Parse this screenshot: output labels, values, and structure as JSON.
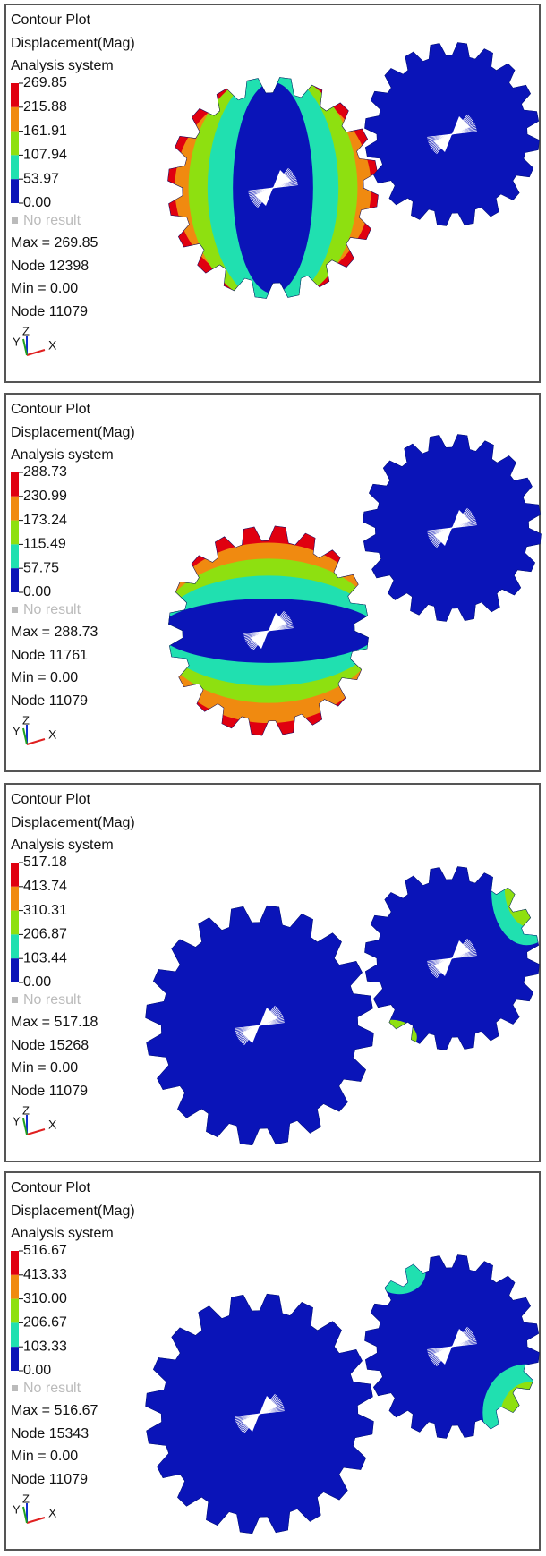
{
  "panels": [
    {
      "title": "Contour Plot",
      "result": "Displacement(Mag)",
      "system": "Analysis system",
      "legend": [
        "269.85",
        "215.88",
        "161.91",
        "107.94",
        "53.97",
        "0.00"
      ],
      "no_result": "No result",
      "max": "Max = 269.85",
      "max_node": "Node 12398",
      "min": "Min = 0.00",
      "min_node": "Node 11079",
      "axes": {
        "y": "Y",
        "z": "Z",
        "x": "X"
      }
    },
    {
      "title": "Contour Plot",
      "result": "Displacement(Mag)",
      "system": "Analysis system",
      "legend": [
        "288.73",
        "230.99",
        "173.24",
        "115.49",
        "57.75",
        "0.00"
      ],
      "no_result": "No result",
      "max": "Max = 288.73",
      "max_node": "Node 11761",
      "min": "Min = 0.00",
      "min_node": "Node 11079",
      "axes": {
        "y": "Y",
        "z": "Z",
        "x": "X"
      }
    },
    {
      "title": "Contour Plot",
      "result": "Displacement(Mag)",
      "system": "Analysis system",
      "legend": [
        "517.18",
        "413.74",
        "310.31",
        "206.87",
        "103.44",
        "0.00"
      ],
      "no_result": "No result",
      "max": "Max = 517.18",
      "max_node": "Node 15268",
      "min": "Min = 0.00",
      "min_node": "Node 11079",
      "axes": {
        "y": "Y",
        "z": "Z",
        "x": "X"
      }
    },
    {
      "title": "Contour Plot",
      "result": "Displacement(Mag)",
      "system": "Analysis system",
      "legend": [
        "516.67",
        "413.33",
        "310.00",
        "206.67",
        "103.33",
        "0.00"
      ],
      "no_result": "No result",
      "max": "Max = 516.67",
      "max_node": "Node 15343",
      "min": "Min = 0.00",
      "min_node": "Node 11079",
      "axes": {
        "y": "Y",
        "z": "Z",
        "x": "X"
      }
    }
  ]
}
